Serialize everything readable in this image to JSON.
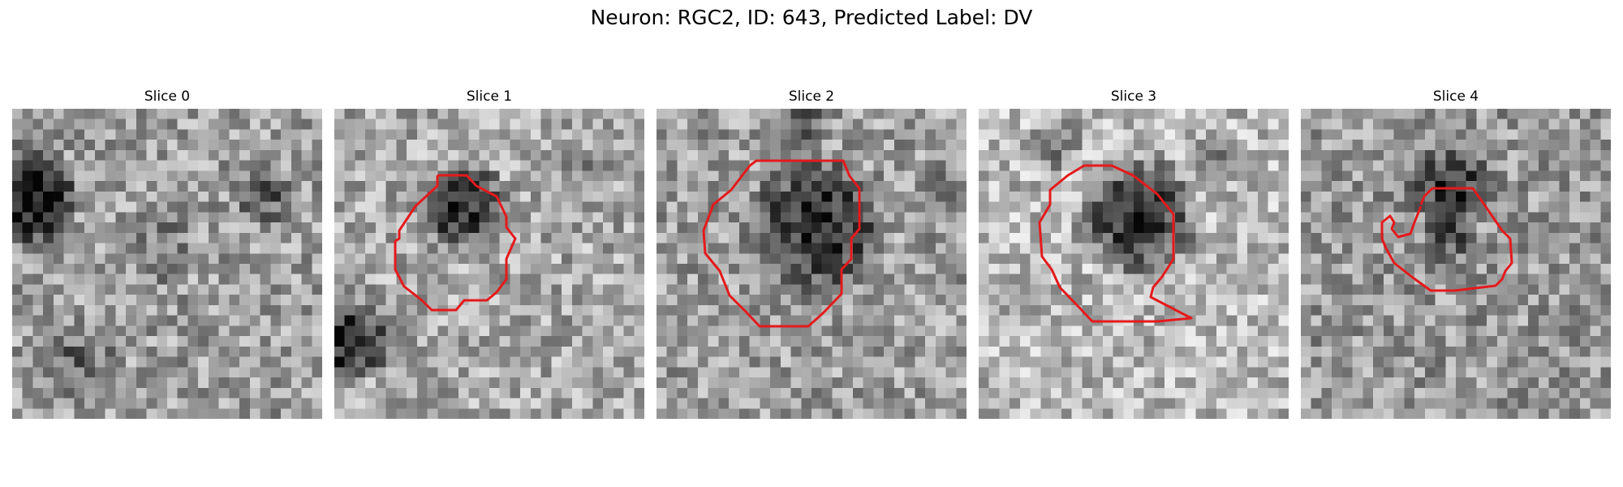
{
  "figure": {
    "title": "Neuron: RGC2, ID: 643, Predicted Label: DV"
  },
  "outline_color": "#e41a1c",
  "colormap": "gray",
  "panels": [
    {
      "title": "Slice 0",
      "has_outline": false
    },
    {
      "title": "Slice 1",
      "has_outline": true
    },
    {
      "title": "Slice 2",
      "has_outline": true
    },
    {
      "title": "Slice 3",
      "has_outline": true
    },
    {
      "title": "Slice 4",
      "has_outline": true
    }
  ]
}
